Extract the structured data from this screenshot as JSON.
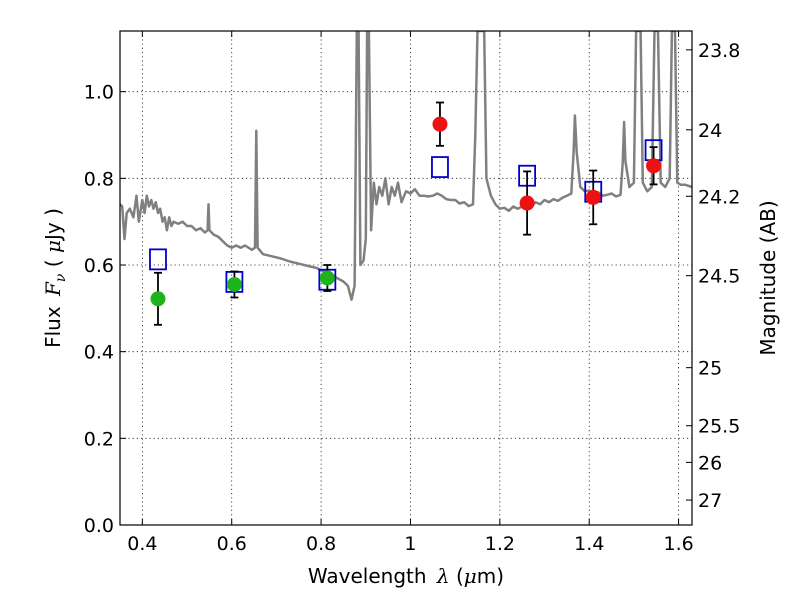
{
  "chart_data": {
    "type": "scatter",
    "xlabel_prefix": "Wavelength",
    "xlabel_lambda": "λ",
    "xlabel_unit_open": "(",
    "xlabel_mu": "μ",
    "xlabel_unit_rest": "m)",
    "ylabel_prefix": "Flux",
    "ylabel_F": "F",
    "ylabel_nu": "ν",
    "ylabel_unit_open": "(",
    "ylabel_mu": "μ",
    "ylabel_unit_rest": "Jy )",
    "y2label": "Magnitude (AB)",
    "xlim": [
      0.35,
      1.63
    ],
    "ylim": [
      0.0,
      1.14
    ],
    "x_ticks": [
      {
        "value": 0.4,
        "label": "0.4"
      },
      {
        "value": 0.6,
        "label": "0.6"
      },
      {
        "value": 0.8,
        "label": "0.8"
      },
      {
        "value": 1.0,
        "label": "1"
      },
      {
        "value": 1.2,
        "label": "1.2"
      },
      {
        "value": 1.4,
        "label": "1.4"
      },
      {
        "value": 1.6,
        "label": "1.6"
      }
    ],
    "y_ticks": [
      {
        "value": 0.0,
        "label": "0.0"
      },
      {
        "value": 0.2,
        "label": "0.2"
      },
      {
        "value": 0.4,
        "label": "0.4"
      },
      {
        "value": 0.6,
        "label": "0.6"
      },
      {
        "value": 0.8,
        "label": "0.8"
      },
      {
        "value": 1.0,
        "label": "1.0"
      }
    ],
    "mag_ticks": [
      {
        "mag": 23.8,
        "label": "23.8"
      },
      {
        "mag": 24.0,
        "label": "24"
      },
      {
        "mag": 24.2,
        "label": "24.2"
      },
      {
        "mag": 24.5,
        "label": "24.5"
      },
      {
        "mag": 25.0,
        "label": "25"
      },
      {
        "mag": 25.5,
        "label": "25.5"
      },
      {
        "mag": 26.0,
        "label": "26"
      },
      {
        "mag": 27.0,
        "label": "27"
      }
    ],
    "grid": true,
    "colors": {
      "model": "#808080",
      "observed_green": "#1cb31c",
      "observed_red": "#ee1111",
      "model_box": "#0000cc",
      "errorbar": "#000000"
    },
    "observed_green": [
      {
        "x": 0.435,
        "y": 0.522,
        "err": 0.06
      },
      {
        "x": 0.606,
        "y": 0.555,
        "err": 0.03
      },
      {
        "x": 0.814,
        "y": 0.57,
        "err": 0.03
      }
    ],
    "observed_red": [
      {
        "x": 1.066,
        "y": 0.925,
        "err": 0.05
      },
      {
        "x": 1.261,
        "y": 0.743,
        "err": 0.073
      },
      {
        "x": 1.409,
        "y": 0.756,
        "err": 0.062
      },
      {
        "x": 1.544,
        "y": 0.829,
        "err": 0.043
      }
    ],
    "model_boxes": [
      {
        "x": 0.435,
        "y": 0.613
      },
      {
        "x": 0.606,
        "y": 0.561
      },
      {
        "x": 0.814,
        "y": 0.566
      },
      {
        "x": 1.066,
        "y": 0.826
      },
      {
        "x": 1.261,
        "y": 0.806
      },
      {
        "x": 1.409,
        "y": 0.769
      },
      {
        "x": 1.544,
        "y": 0.865
      }
    ],
    "model_spectrum": [
      [
        0.35,
        0.74
      ],
      [
        0.355,
        0.735
      ],
      [
        0.36,
        0.66
      ],
      [
        0.365,
        0.72
      ],
      [
        0.372,
        0.73
      ],
      [
        0.38,
        0.71
      ],
      [
        0.387,
        0.76
      ],
      [
        0.392,
        0.7
      ],
      [
        0.4,
        0.75
      ],
      [
        0.405,
        0.72
      ],
      [
        0.41,
        0.76
      ],
      [
        0.415,
        0.735
      ],
      [
        0.42,
        0.75
      ],
      [
        0.425,
        0.73
      ],
      [
        0.43,
        0.745
      ],
      [
        0.435,
        0.72
      ],
      [
        0.44,
        0.73
      ],
      [
        0.445,
        0.7
      ],
      [
        0.45,
        0.71
      ],
      [
        0.455,
        0.68
      ],
      [
        0.46,
        0.71
      ],
      [
        0.465,
        0.69
      ],
      [
        0.47,
        0.7
      ],
      [
        0.48,
        0.695
      ],
      [
        0.49,
        0.7
      ],
      [
        0.5,
        0.69
      ],
      [
        0.51,
        0.69
      ],
      [
        0.52,
        0.68
      ],
      [
        0.53,
        0.685
      ],
      [
        0.54,
        0.675
      ],
      [
        0.546,
        0.68
      ],
      [
        0.548,
        0.74
      ],
      [
        0.55,
        0.68
      ],
      [
        0.56,
        0.67
      ],
      [
        0.57,
        0.665
      ],
      [
        0.58,
        0.655
      ],
      [
        0.59,
        0.645
      ],
      [
        0.6,
        0.64
      ],
      [
        0.61,
        0.645
      ],
      [
        0.62,
        0.64
      ],
      [
        0.63,
        0.645
      ],
      [
        0.645,
        0.635
      ],
      [
        0.652,
        0.64
      ],
      [
        0.655,
        0.91
      ],
      [
        0.658,
        0.64
      ],
      [
        0.67,
        0.625
      ],
      [
        0.69,
        0.62
      ],
      [
        0.71,
        0.615
      ],
      [
        0.73,
        0.608
      ],
      [
        0.75,
        0.603
      ],
      [
        0.77,
        0.598
      ],
      [
        0.79,
        0.593
      ],
      [
        0.81,
        0.583
      ],
      [
        0.83,
        0.573
      ],
      [
        0.85,
        0.562
      ],
      [
        0.86,
        0.552
      ],
      [
        0.868,
        0.52
      ],
      [
        0.875,
        0.552
      ],
      [
        0.88,
        1.14
      ],
      [
        0.884,
        1.14
      ],
      [
        0.888,
        0.6
      ],
      [
        0.895,
        0.61
      ],
      [
        0.9,
        0.66
      ],
      [
        0.903,
        1.14
      ],
      [
        0.907,
        1.14
      ],
      [
        0.912,
        0.68
      ],
      [
        0.918,
        0.79
      ],
      [
        0.924,
        0.74
      ],
      [
        0.93,
        0.78
      ],
      [
        0.937,
        0.76
      ],
      [
        0.944,
        0.8
      ],
      [
        0.951,
        0.74
      ],
      [
        0.958,
        0.78
      ],
      [
        0.965,
        0.76
      ],
      [
        0.972,
        0.79
      ],
      [
        0.98,
        0.745
      ],
      [
        0.99,
        0.77
      ],
      [
        1.0,
        0.765
      ],
      [
        1.01,
        0.775
      ],
      [
        1.02,
        0.76
      ],
      [
        1.03,
        0.76
      ],
      [
        1.04,
        0.758
      ],
      [
        1.05,
        0.76
      ],
      [
        1.06,
        0.765
      ],
      [
        1.07,
        0.76
      ],
      [
        1.08,
        0.752
      ],
      [
        1.09,
        0.75
      ],
      [
        1.1,
        0.75
      ],
      [
        1.11,
        0.742
      ],
      [
        1.12,
        0.745
      ],
      [
        1.13,
        0.736
      ],
      [
        1.14,
        0.74
      ],
      [
        1.145,
        0.9
      ],
      [
        1.15,
        1.14
      ],
      [
        1.165,
        1.14
      ],
      [
        1.17,
        0.8
      ],
      [
        1.18,
        0.76
      ],
      [
        1.19,
        0.74
      ],
      [
        1.2,
        0.73
      ],
      [
        1.21,
        0.732
      ],
      [
        1.22,
        0.725
      ],
      [
        1.23,
        0.735
      ],
      [
        1.24,
        0.73
      ],
      [
        1.25,
        0.735
      ],
      [
        1.26,
        0.745
      ],
      [
        1.27,
        0.735
      ],
      [
        1.28,
        0.745
      ],
      [
        1.29,
        0.74
      ],
      [
        1.3,
        0.75
      ],
      [
        1.31,
        0.745
      ],
      [
        1.32,
        0.752
      ],
      [
        1.33,
        0.748
      ],
      [
        1.34,
        0.755
      ],
      [
        1.35,
        0.76
      ],
      [
        1.36,
        0.765
      ],
      [
        1.365,
        0.86
      ],
      [
        1.368,
        0.945
      ],
      [
        1.372,
        0.86
      ],
      [
        1.38,
        0.78
      ],
      [
        1.39,
        0.77
      ],
      [
        1.4,
        0.772
      ],
      [
        1.41,
        0.765
      ],
      [
        1.42,
        0.768
      ],
      [
        1.43,
        0.76
      ],
      [
        1.44,
        0.762
      ],
      [
        1.45,
        0.765
      ],
      [
        1.46,
        0.758
      ],
      [
        1.47,
        0.762
      ],
      [
        1.475,
        0.835
      ],
      [
        1.478,
        0.93
      ],
      [
        1.481,
        0.84
      ],
      [
        1.49,
        0.78
      ],
      [
        1.5,
        0.79
      ],
      [
        1.505,
        1.14
      ],
      [
        1.515,
        1.14
      ],
      [
        1.52,
        0.79
      ],
      [
        1.53,
        0.77
      ],
      [
        1.54,
        0.78
      ],
      [
        1.546,
        1.14
      ],
      [
        1.554,
        1.14
      ],
      [
        1.56,
        0.79
      ],
      [
        1.57,
        0.78
      ],
      [
        1.58,
        0.8
      ],
      [
        1.585,
        1.14
      ],
      [
        1.592,
        1.14
      ],
      [
        1.597,
        0.79
      ],
      [
        1.605,
        0.785
      ],
      [
        1.615,
        0.785
      ],
      [
        1.63,
        0.78
      ]
    ]
  }
}
